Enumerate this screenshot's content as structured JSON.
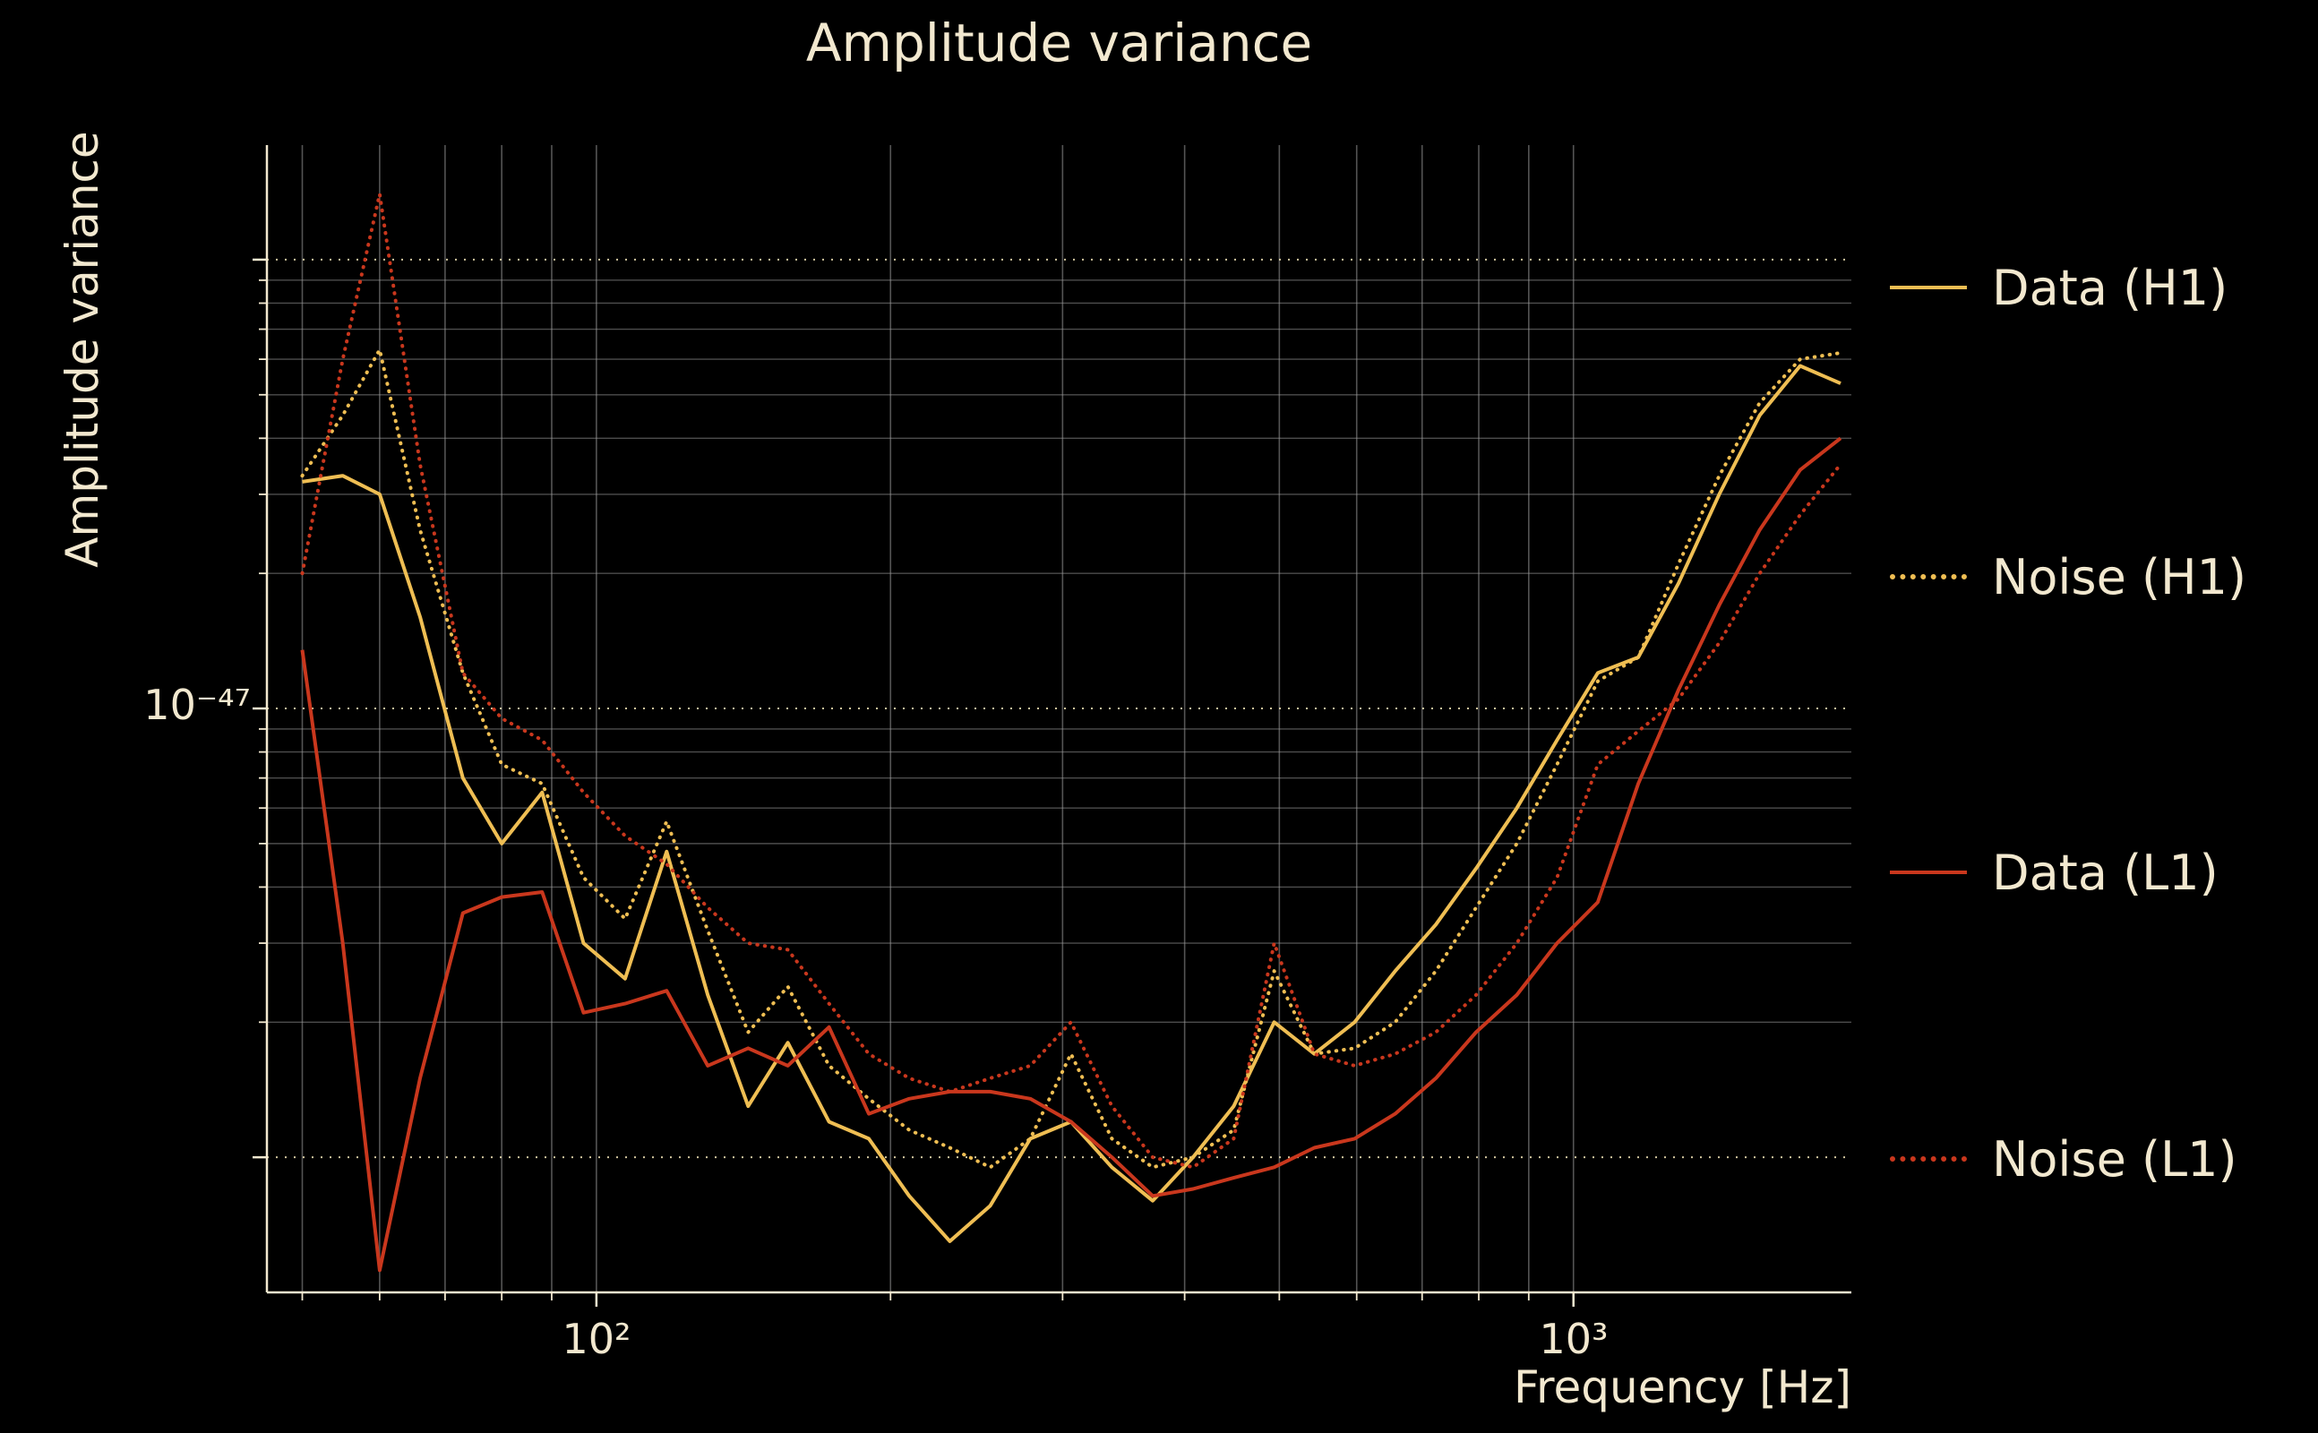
{
  "title": "Amplitude variance",
  "axes": {
    "xlabel": "Frequency [Hz]",
    "ylabel": "Amplitude variance",
    "x_tick_labels": [
      "10²",
      "10³"
    ],
    "y_tick_labels": [
      "10⁻⁴⁷"
    ]
  },
  "colors": {
    "background": "#000000",
    "text": "#f2e8cf",
    "grid_minor": "#9a9a9a",
    "grid_major": "#e8dcb0",
    "h1": "#efbe53",
    "l1": "#c9371d"
  },
  "legend": {
    "position": "right",
    "items": [
      {
        "label": "Data (H1)",
        "color": "#efbe53",
        "style": "solid"
      },
      {
        "label": "Noise (H1)",
        "color": "#efbe53",
        "style": "dotted"
      },
      {
        "label": "Data (L1)",
        "color": "#c9371d",
        "style": "solid"
      },
      {
        "label": "Noise (L1)",
        "color": "#c9371d",
        "style": "dotted"
      }
    ]
  },
  "chart_data": {
    "type": "line",
    "title": "Amplitude variance",
    "xlabel": "Frequency [Hz]",
    "ylabel": "Amplitude variance",
    "xscale": "log",
    "yscale": "log",
    "grid": "both",
    "legend_position": "right",
    "xlim": [
      46,
      1925
    ],
    "ylim": [
      5e-49,
      1.8e-46
    ],
    "x_ticks": {
      "major": [
        100,
        1000
      ],
      "minor": [
        50,
        60,
        70,
        80,
        90,
        200,
        300,
        400,
        500,
        600,
        700,
        800,
        900
      ]
    },
    "y_ticks": {
      "major": [
        1e-46,
        1e-47,
        1e-48
      ],
      "minor": [
        2e-48,
        3e-48,
        4e-48,
        5e-48,
        6e-48,
        7e-48,
        8e-48,
        9e-48,
        2e-47,
        3e-47,
        4e-47,
        5e-47,
        6e-47,
        7e-47,
        8e-47,
        9e-47
      ]
    },
    "x": [
      50,
      55,
      60,
      66,
      73,
      80,
      88,
      97,
      107,
      118,
      130,
      143,
      157,
      173,
      190,
      209,
      230,
      253,
      278,
      306,
      337,
      371,
      408,
      449,
      494,
      543,
      597,
      657,
      723,
      795,
      875,
      962,
      1059,
      1165,
      1281,
      1410,
      1551,
      1706,
      1877
    ],
    "series": [
      {
        "id": "data-h1",
        "name": "Data (H1)",
        "color": "#efbe53",
        "dash": "solid",
        "values": [
          3.2e-47,
          3.3e-47,
          3e-47,
          1.6e-47,
          7e-48,
          5e-48,
          6.5e-48,
          3e-48,
          2.5e-48,
          4.8e-48,
          2.3e-48,
          1.3e-48,
          1.8e-48,
          1.2e-48,
          1.1e-48,
          8.2e-49,
          6.5e-49,
          7.8e-49,
          1.1e-48,
          1.2e-48,
          9.5e-49,
          8e-49,
          1e-48,
          1.3e-48,
          2e-48,
          1.7e-48,
          2e-48,
          2.6e-48,
          3.3e-48,
          4.4e-48,
          6e-48,
          8.5e-48,
          1.2e-47,
          1.3e-47,
          1.9e-47,
          3e-47,
          4.5e-47,
          5.8e-47,
          5.3e-47
        ]
      },
      {
        "id": "noise-h1",
        "name": "Noise (H1)",
        "color": "#efbe53",
        "dash": "dotted",
        "values": [
          3.3e-47,
          4.5e-47,
          6.3e-47,
          2.5e-47,
          1.2e-47,
          7.5e-48,
          6.8e-48,
          4.2e-48,
          3.4e-48,
          5.6e-48,
          3.2e-48,
          1.9e-48,
          2.4e-48,
          1.6e-48,
          1.35e-48,
          1.15e-48,
          1.05e-48,
          9.5e-49,
          1.1e-48,
          1.7e-48,
          1.1e-48,
          9.5e-49,
          1e-48,
          1.15e-48,
          2.6e-48,
          1.7e-48,
          1.75e-48,
          2e-48,
          2.6e-48,
          3.6e-48,
          5e-48,
          7.5e-48,
          1.15e-47,
          1.3e-47,
          2.1e-47,
          3.3e-47,
          4.8e-47,
          6e-47,
          6.2e-47
        ]
      },
      {
        "id": "data-l1",
        "name": "Data (L1)",
        "color": "#c9371d",
        "dash": "solid",
        "values": [
          1.35e-47,
          3e-48,
          5.6e-49,
          1.5e-48,
          3.5e-48,
          3.8e-48,
          3.9e-48,
          2.1e-48,
          2.2e-48,
          2.35e-48,
          1.6e-48,
          1.75e-48,
          1.6e-48,
          1.95e-48,
          1.25e-48,
          1.35e-48,
          1.4e-48,
          1.4e-48,
          1.35e-48,
          1.2e-48,
          1e-48,
          8.2e-49,
          8.5e-49,
          9e-49,
          9.5e-49,
          1.05e-48,
          1.1e-48,
          1.25e-48,
          1.5e-48,
          1.9e-48,
          2.3e-48,
          3e-48,
          3.7e-48,
          6.8e-48,
          1.1e-47,
          1.7e-47,
          2.5e-47,
          3.4e-47,
          4e-47
        ]
      },
      {
        "id": "noise-l1",
        "name": "Noise (L1)",
        "color": "#c9371d",
        "dash": "dotted",
        "values": [
          2e-47,
          6e-47,
          1.4e-46,
          3.5e-47,
          1.2e-47,
          9.5e-48,
          8.5e-48,
          6.5e-48,
          5.2e-48,
          4.5e-48,
          3.6e-48,
          3e-48,
          2.9e-48,
          2.2e-48,
          1.7e-48,
          1.5e-48,
          1.4e-48,
          1.5e-48,
          1.6e-48,
          2e-48,
          1.3e-48,
          1e-48,
          9.5e-49,
          1.1e-48,
          3e-48,
          1.7e-48,
          1.6e-48,
          1.7e-48,
          1.9e-48,
          2.3e-48,
          3e-48,
          4.2e-48,
          7.5e-48,
          8.9e-48,
          1.05e-47,
          1.4e-47,
          2e-47,
          2.7e-47,
          3.5e-47
        ]
      }
    ]
  }
}
